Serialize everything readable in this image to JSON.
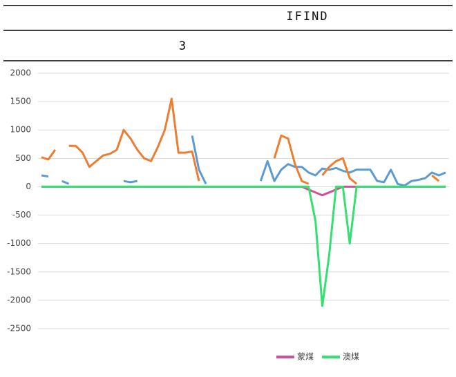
{
  "header": {
    "title": "IFIND",
    "number": "3"
  },
  "chart_data": {
    "type": "line",
    "categories": [
      null,
      null,
      null,
      null,
      null,
      null,
      null,
      null,
      null,
      null,
      null,
      null,
      null,
      null,
      null,
      null,
      null,
      null,
      null,
      null,
      null,
      null,
      null,
      null,
      null,
      null,
      null,
      null,
      null,
      null,
      null,
      null,
      null,
      null,
      null,
      null,
      null,
      null,
      null,
      null,
      null,
      null,
      null,
      null,
      null,
      null,
      null,
      null,
      null,
      null,
      null,
      null,
      null,
      null,
      null,
      null,
      null,
      null,
      null,
      null
    ],
    "series": [
      {
        "color": "#5b9bd5",
        "values": [
          200,
          180,
          null,
          100,
          50,
          null,
          null,
          null,
          50,
          null,
          null,
          null,
          100,
          80,
          100,
          null,
          null,
          null,
          null,
          null,
          null,
          null,
          900,
          300,
          50,
          null,
          null,
          null,
          null,
          null,
          null,
          null,
          100,
          450,
          100,
          300,
          400,
          350,
          350,
          250,
          200,
          320,
          300,
          330,
          280,
          250,
          300,
          300,
          300,
          100,
          80,
          300,
          50,
          20,
          100,
          120,
          150,
          250,
          200,
          250
        ]
      },
      {
        "color": "#ed7d31",
        "values": [
          520,
          480,
          650,
          null,
          720,
          720,
          600,
          350,
          450,
          550,
          580,
          650,
          1000,
          850,
          650,
          500,
          450,
          700,
          1000,
          1550,
          600,
          600,
          620,
          100,
          null,
          null,
          null,
          null,
          null,
          null,
          null,
          null,
          null,
          null,
          500,
          900,
          850,
          400,
          100,
          50,
          null,
          200,
          350,
          450,
          500,
          150,
          50,
          null,
          null,
          null,
          null,
          null,
          null,
          null,
          null,
          null,
          null,
          200,
          100,
          null
        ]
      },
      {
        "name": "蒙煤",
        "color": "#d0509a",
        "values": [
          0,
          0,
          0,
          0,
          0,
          0,
          0,
          0,
          0,
          0,
          0,
          0,
          0,
          0,
          0,
          0,
          0,
          0,
          0,
          0,
          0,
          0,
          0,
          0,
          0,
          0,
          0,
          0,
          0,
          0,
          0,
          0,
          0,
          0,
          0,
          0,
          0,
          0,
          0,
          -50,
          -100,
          -150,
          -100,
          -50,
          0,
          0,
          0,
          0,
          0,
          0,
          0,
          0,
          0,
          0,
          0,
          0,
          0,
          0,
          0,
          0
        ]
      },
      {
        "name": "澳煤",
        "color": "#33e070",
        "values": [
          0,
          0,
          0,
          0,
          0,
          0,
          0,
          0,
          0,
          0,
          0,
          0,
          0,
          0,
          0,
          0,
          0,
          0,
          0,
          0,
          0,
          0,
          0,
          0,
          0,
          0,
          0,
          0,
          0,
          0,
          0,
          0,
          0,
          0,
          0,
          0,
          0,
          0,
          0,
          0,
          -600,
          -2100,
          -1200,
          0,
          0,
          -1000,
          0,
          0,
          0,
          0,
          0,
          0,
          0,
          0,
          0,
          0,
          0,
          0,
          0,
          0
        ]
      }
    ],
    "ylim": [
      -2500,
      2000
    ],
    "yticks": [
      2000,
      1500,
      1000,
      500,
      0,
      -500,
      -1000,
      -1500,
      -2000,
      -2500
    ],
    "grid": true
  }
}
